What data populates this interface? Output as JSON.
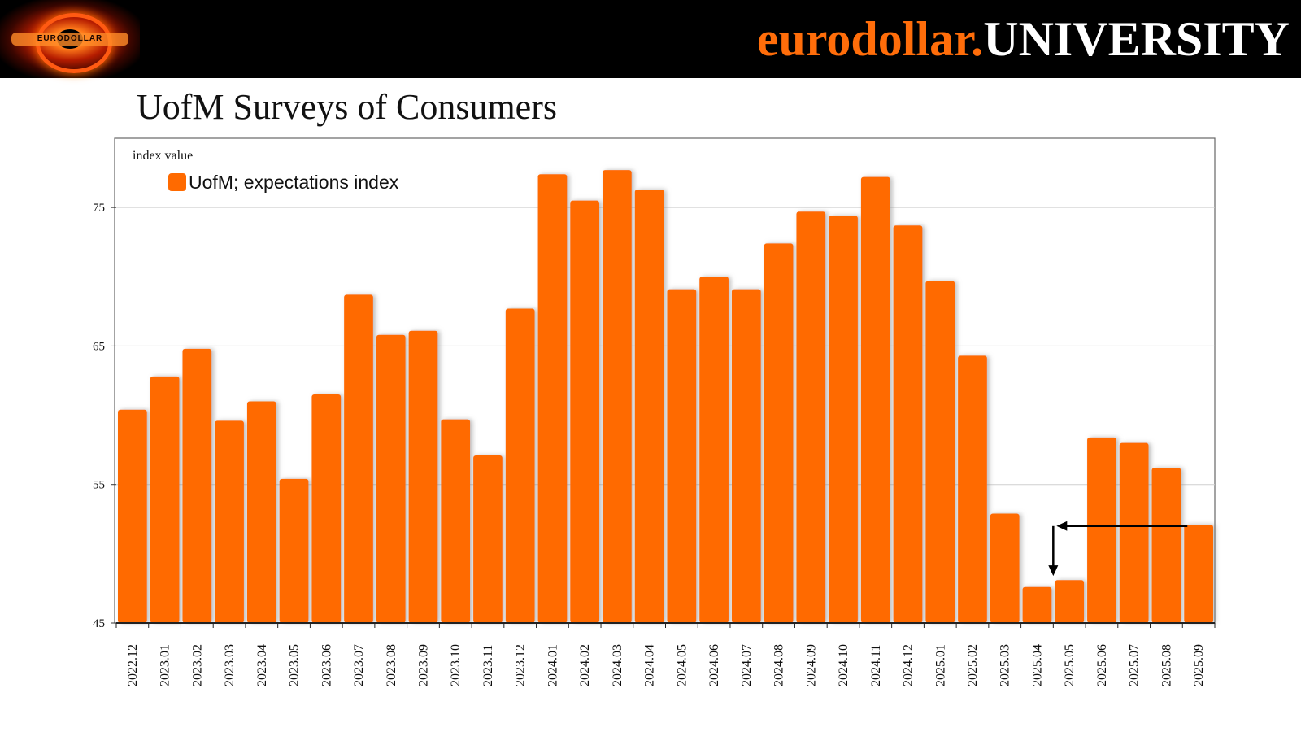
{
  "header": {
    "logo_text": "EURODOLLAR",
    "brand_part1": "eurodollar.",
    "brand_part2": "UNIVERSITY"
  },
  "page_title": "UofM Surveys of Consumers",
  "colors": {
    "bar": "#ff6a00",
    "brand_orange": "#ff6d0a",
    "grid": "#cfcfcf"
  },
  "chart_data": {
    "type": "bar",
    "title": "UofM Surveys of Consumers",
    "ylabel": "index value",
    "xlabel": "",
    "ylim": [
      45,
      80
    ],
    "yticks": [
      45,
      55,
      65,
      75
    ],
    "grid": true,
    "legend_position": "top-left",
    "series": [
      {
        "name": "UofM; expectations index",
        "values": [
          60.4,
          62.8,
          64.8,
          59.6,
          61.0,
          55.4,
          61.5,
          68.7,
          65.8,
          66.1,
          59.7,
          57.1,
          67.7,
          77.4,
          75.5,
          77.7,
          76.3,
          69.1,
          70.0,
          69.1,
          72.4,
          74.7,
          74.4,
          77.2,
          73.7,
          69.7,
          64.3,
          52.9,
          47.6,
          48.1,
          58.4,
          58.0,
          56.2,
          52.1
        ]
      }
    ],
    "categories": [
      "2022.12",
      "2023.01",
      "2023.02",
      "2023.03",
      "2023.04",
      "2023.05",
      "2023.06",
      "2023.07",
      "2023.08",
      "2023.09",
      "2023.10",
      "2023.11",
      "2023.12",
      "2024.01",
      "2024.02",
      "2024.03",
      "2024.04",
      "2024.05",
      "2024.06",
      "2024.07",
      "2024.08",
      "2024.09",
      "2024.10",
      "2024.11",
      "2024.12",
      "2025.01",
      "2025.02",
      "2025.03",
      "2025.04",
      "2025.05",
      "2025.06",
      "2025.07",
      "2025.08",
      "2025.09"
    ],
    "annotations": [
      {
        "type": "arrow",
        "from_category": "2025.09",
        "to_category": "2025.05",
        "level": 52.0,
        "direction": "left"
      },
      {
        "type": "arrow",
        "at_boundary": [
          "2025.04",
          "2025.05"
        ],
        "from_level": 52.0,
        "to_level": 48.4,
        "direction": "down"
      }
    ]
  }
}
